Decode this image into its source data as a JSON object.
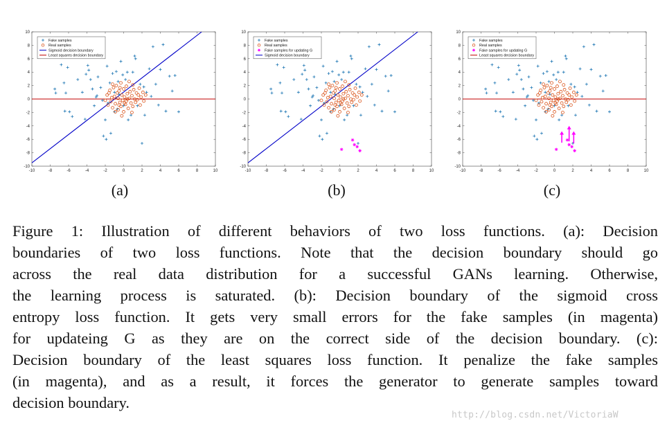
{
  "figure": {
    "subfigure_labels": [
      "(a)",
      "(b)",
      "(c)"
    ],
    "caption_lines": [
      "Figure 1: Illustration of different behaviors of two loss functions. (a): Decision",
      "boundaries of two loss functions. Note that the decision boundary should go",
      "across the real data distribution for a successful GANs learning. Otherwise,",
      "the learning process is saturated. (b): Decision boundary of the sigmoid cross",
      "entropy loss function. It gets very small errors for the fake samples (in magenta)",
      "for updateing G as they are on the correct side of the decision boundary. (c):",
      "Decision boundary of the least squares loss function. It penalize the fake samples",
      "(in magenta), and as a result, it forces the generator to generate samples toward",
      "decision boundary."
    ],
    "watermark": "http://blog.csdn.net/VictoriaW"
  },
  "colors": {
    "fake": "#1f77b4",
    "real": "#d95319",
    "magenta": "#ff00ff",
    "sigmoid_line": "#0000c8",
    "ls_line": "#c00000"
  },
  "chart_data": [
    {
      "type": "scatter",
      "panel": "(a)",
      "xlim": [
        -10,
        10
      ],
      "ylim": [
        -10,
        10
      ],
      "ticks": [
        -10,
        -8,
        -6,
        -4,
        -2,
        0,
        2,
        4,
        6,
        8,
        10
      ],
      "legend_position": "top-left",
      "legend": [
        "Fake samples",
        "Real samples",
        "Sigmoid decision boundary",
        "Least squares decision boundary"
      ],
      "show_magenta": false,
      "show_arrows": false,
      "show_sigmoid": true,
      "show_ls": true
    },
    {
      "type": "scatter",
      "panel": "(b)",
      "xlim": [
        -10,
        10
      ],
      "ylim": [
        -10,
        10
      ],
      "ticks": [
        -10,
        -8,
        -6,
        -4,
        -2,
        0,
        2,
        4,
        6,
        8,
        10
      ],
      "legend_position": "top-left",
      "legend": [
        "Fake samples",
        "Real samples",
        "Fake samples for updating G",
        "Sigmoid decision boundary"
      ],
      "show_magenta": true,
      "show_arrows": false,
      "show_sigmoid": true,
      "show_ls": false
    },
    {
      "type": "scatter",
      "panel": "(c)",
      "xlim": [
        -10,
        10
      ],
      "ylim": [
        -10,
        10
      ],
      "ticks": [
        -10,
        -8,
        -6,
        -4,
        -2,
        0,
        2,
        4,
        6,
        8,
        10
      ],
      "legend_position": "top-left",
      "legend": [
        "Fake samples",
        "Real samples",
        "Fake samples for updating G",
        "Least squares decision boundary"
      ],
      "show_magenta": true,
      "show_arrows": true,
      "show_sigmoid": false,
      "show_ls": true
    }
  ],
  "series": {
    "sigmoid_boundary": [
      [
        -10,
        -9.5
      ],
      [
        8.5,
        10
      ]
    ],
    "least_squares_boundary": [
      [
        -10,
        0
      ],
      [
        10,
        0
      ]
    ],
    "fake_samples": [
      [
        -7.5,
        1.5
      ],
      [
        -7.4,
        0.9
      ],
      [
        -6.8,
        5.1
      ],
      [
        -6.5,
        2.4
      ],
      [
        -6.3,
        0.9
      ],
      [
        -6.1,
        4.7
      ],
      [
        -6.4,
        -1.8
      ],
      [
        -5.9,
        -1.9
      ],
      [
        -5.6,
        -2.6
      ],
      [
        -5.0,
        2.9
      ],
      [
        -4.5,
        1.0
      ],
      [
        -4.2,
        -3.0
      ],
      [
        -4.1,
        3.7
      ],
      [
        -3.9,
        5.0
      ],
      [
        -3.8,
        4.3
      ],
      [
        -3.6,
        2.9
      ],
      [
        -3.4,
        1.5
      ],
      [
        -3.2,
        -1.0
      ],
      [
        -3.0,
        0.3
      ],
      [
        -2.8,
        3.3
      ],
      [
        -2.5,
        1.7
      ],
      [
        -2.3,
        -0.2
      ],
      [
        -2.2,
        -5.5
      ],
      [
        -2.0,
        -3.1
      ],
      [
        -1.9,
        -6.0
      ],
      [
        -1.8,
        4.9
      ],
      [
        -1.7,
        -0.6
      ],
      [
        -1.5,
        2.4
      ],
      [
        -1.4,
        -5.1
      ],
      [
        -1.2,
        3.8
      ],
      [
        -1.0,
        -1.9
      ],
      [
        -0.8,
        4.1
      ],
      [
        -0.6,
        2.6
      ],
      [
        -0.5,
        0.7
      ],
      [
        -0.3,
        5.6
      ],
      [
        -0.1,
        3.6
      ],
      [
        0.2,
        2.9
      ],
      [
        0.4,
        4.0
      ],
      [
        0.5,
        -3.1
      ],
      [
        0.8,
        -2.4
      ],
      [
        1.0,
        4.0
      ],
      [
        1.2,
        6.4
      ],
      [
        1.3,
        6.0
      ],
      [
        1.5,
        -1.0
      ],
      [
        1.8,
        2.2
      ],
      [
        2.0,
        -6.6
      ],
      [
        2.3,
        -2.4
      ],
      [
        2.5,
        1.0
      ],
      [
        2.8,
        4.5
      ],
      [
        3.0,
        0.4
      ],
      [
        3.2,
        7.8
      ],
      [
        3.5,
        2.2
      ],
      [
        3.8,
        -0.9
      ],
      [
        4.0,
        4.4
      ],
      [
        4.3,
        8.1
      ],
      [
        4.6,
        -1.8
      ],
      [
        5.0,
        3.4
      ],
      [
        5.3,
        1.2
      ],
      [
        5.6,
        3.5
      ],
      [
        6.0,
        -1.9
      ],
      [
        -1.0,
        1.0
      ],
      [
        -0.7,
        -1.5
      ],
      [
        0.0,
        -1.0
      ],
      [
        2.2,
        1.8
      ],
      [
        -2.9,
        0.5
      ]
    ],
    "real_samples": [
      [
        -2.0,
        -0.2
      ],
      [
        -1.8,
        0.6
      ],
      [
        -1.7,
        -0.9
      ],
      [
        -1.5,
        1.3
      ],
      [
        -1.4,
        -0.4
      ],
      [
        -1.3,
        0.2
      ],
      [
        -1.2,
        -1.3
      ],
      [
        -1.1,
        1.7
      ],
      [
        -1.0,
        0.4
      ],
      [
        -0.9,
        -0.7
      ],
      [
        -0.8,
        2.0
      ],
      [
        -0.7,
        0.9
      ],
      [
        -0.6,
        -1.6
      ],
      [
        -0.6,
        0.1
      ],
      [
        -0.5,
        1.2
      ],
      [
        -0.4,
        -0.5
      ],
      [
        -0.3,
        2.4
      ],
      [
        -0.3,
        -1.1
      ],
      [
        -0.2,
        0.6
      ],
      [
        -0.1,
        -0.2
      ],
      [
        0.0,
        1.5
      ],
      [
        0.0,
        -1.9
      ],
      [
        0.1,
        0.3
      ],
      [
        0.2,
        -0.8
      ],
      [
        0.3,
        1.9
      ],
      [
        0.3,
        -0.3
      ],
      [
        0.4,
        0.8
      ],
      [
        0.5,
        -1.4
      ],
      [
        0.6,
        0.1
      ],
      [
        0.7,
        1.1
      ],
      [
        0.8,
        -0.6
      ],
      [
        0.9,
        0.5
      ],
      [
        1.0,
        -1.1
      ],
      [
        1.1,
        1.4
      ],
      [
        1.2,
        0.0
      ],
      [
        1.3,
        -0.5
      ],
      [
        1.4,
        0.9
      ],
      [
        1.5,
        -0.1
      ],
      [
        1.6,
        0.6
      ],
      [
        1.8,
        -0.9
      ],
      [
        1.9,
        0.3
      ],
      [
        2.1,
        1.0
      ],
      [
        2.2,
        -0.3
      ],
      [
        2.4,
        0.6
      ],
      [
        -0.9,
        -1.9
      ],
      [
        -0.2,
        -2.5
      ],
      [
        0.6,
        2.6
      ],
      [
        1.0,
        2.1
      ],
      [
        -1.6,
        0.9
      ],
      [
        0.9,
        -2.0
      ],
      [
        -0.5,
        -0.9
      ],
      [
        0.4,
        0.0
      ],
      [
        1.7,
        1.6
      ],
      [
        -1.2,
        2.2
      ],
      [
        0.1,
        -0.6
      ],
      [
        -0.4,
        1.7
      ]
    ],
    "magenta_samples": [
      [
        0.2,
        -7.5
      ],
      [
        1.4,
        -6.1
      ],
      [
        1.6,
        -6.8
      ],
      [
        1.9,
        -7.1
      ],
      [
        2.2,
        -7.7
      ]
    ],
    "magenta_arrows": [
      [
        0.8,
        -6.5,
        0.8,
        -4.8
      ],
      [
        1.6,
        -6.3,
        1.6,
        -4.0
      ],
      [
        2.1,
        -6.6,
        2.1,
        -4.8
      ]
    ]
  }
}
